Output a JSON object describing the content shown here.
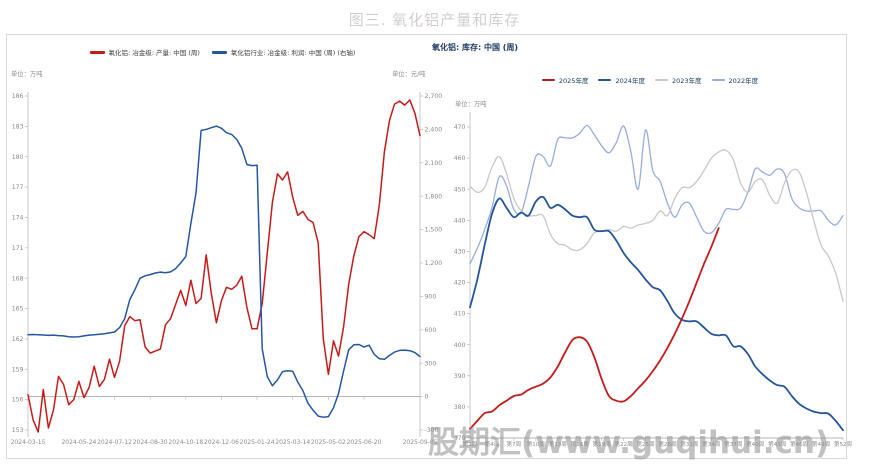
{
  "page": {
    "title": "图三. 氧化铝产量和库存",
    "watermark": "股期汇(www.guqihui.cn)"
  },
  "left_chart": {
    "unit_left": "单位：万吨",
    "unit_right": "单位：元/吨",
    "legend": [
      {
        "label": "氧化铝: 冶金级: 产量: 中国 (周)",
        "color": "#c41a1a"
      },
      {
        "label": "氧化铝行业: 冶金级: 利润: 中国 (周) (右轴)",
        "color": "#2456a4"
      }
    ]
  },
  "right_chart": {
    "title": "氧化铝: 库存: 中国 (周)",
    "unit": "单位：万吨",
    "legend": [
      {
        "label": "2025年度",
        "color": "#c41a1a"
      },
      {
        "label": "2024年度",
        "color": "#24549c"
      },
      {
        "label": "2023年度",
        "color": "#c8c8c8"
      },
      {
        "label": "2022年度",
        "color": "#95aedc"
      }
    ]
  },
  "chart_data": [
    {
      "id": "left",
      "type": "line",
      "ylabel_left": "万吨",
      "ylabel_right": "元/吨",
      "ylim_left": [
        153,
        186
      ],
      "yticks_left": [
        186,
        183,
        180,
        177,
        174,
        171,
        168,
        165,
        162,
        159,
        156,
        153
      ],
      "ylim_right": [
        -300,
        2700
      ],
      "yticks_right": [
        {
          "v": 2700,
          "label": "2,700"
        },
        {
          "v": 2400,
          "label": "2,400"
        },
        {
          "v": 2100,
          "label": "2,100"
        },
        {
          "v": 1800,
          "label": "1,800"
        },
        {
          "v": 1500,
          "label": "1,500"
        },
        {
          "v": 1200,
          "label": "1,200"
        },
        {
          "v": 900,
          "label": "900"
        },
        {
          "v": 600,
          "label": "600"
        },
        {
          "v": 300,
          "label": "300"
        },
        {
          "v": 0,
          "label": "0"
        },
        {
          "v": -300,
          "label": "-300"
        }
      ],
      "x_ticks": [
        {
          "pos": 0,
          "label": "2024-03-15"
        },
        {
          "pos": 10,
          "label": "2024-05-24"
        },
        {
          "pos": 17,
          "label": "2024-07-12"
        },
        {
          "pos": 24,
          "label": "2024-08-30"
        },
        {
          "pos": 31,
          "label": "2024-10-18"
        },
        {
          "pos": 38,
          "label": "2024-12-06"
        },
        {
          "pos": 45,
          "label": "2025-01-24"
        },
        {
          "pos": 52,
          "label": "2025-03-14"
        },
        {
          "pos": 59,
          "label": "2025-05-02"
        },
        {
          "pos": 66,
          "label": "2025-06-20"
        },
        {
          "pos": 77,
          "label": "2025-09-05"
        }
      ],
      "series": [
        {
          "name": "氧化铝: 冶金级: 产量: 中国 (周)",
          "axis": "left",
          "color": "#c41a1a",
          "width": 1.5,
          "values": [
            156.5,
            154,
            152.8,
            157,
            153.2,
            155,
            158.3,
            157.5,
            155.5,
            156,
            157.8,
            156.2,
            157.2,
            159.3,
            157.3,
            158,
            160,
            158.2,
            159.8,
            163.3,
            164.2,
            163.8,
            163.9,
            161.2,
            160.6,
            160.8,
            161,
            163.4,
            164,
            165.4,
            166.8,
            165.3,
            167.8,
            165.5,
            166,
            170.3,
            166.5,
            163.6,
            165.8,
            167.1,
            166.9,
            167.3,
            168.2,
            165.1,
            163,
            163,
            165.5,
            170.5,
            175.5,
            178.3,
            177.7,
            178.5,
            176,
            174.2,
            174.6,
            173.8,
            173.5,
            171.5,
            162,
            158.5,
            161.8,
            160.3,
            163.2,
            167.4,
            170.2,
            172.1,
            172.6,
            172.3,
            171.9,
            175.2,
            180.5,
            183.6,
            185.2,
            185.5,
            185.1,
            185.6,
            184.3,
            182.1
          ]
        },
        {
          "name": "氧化铝行业: 冶金级: 利润: 中国 (周) (右轴)",
          "axis": "right",
          "color": "#2456a4",
          "width": 1.5,
          "values": [
            555,
            558,
            556,
            553,
            550,
            552,
            548,
            545,
            538,
            535,
            537,
            545,
            552,
            556,
            560,
            565,
            572,
            580,
            620,
            700,
            871,
            960,
            1063,
            1085,
            1096,
            1110,
            1118,
            1112,
            1120,
            1150,
            1200,
            1258,
            1556,
            1829,
            2390,
            2400,
            2415,
            2430,
            2410,
            2370,
            2355,
            2310,
            2230,
            2085,
            2075,
            2078,
            430,
            180,
            98,
            150,
            225,
            232,
            228,
            130,
            54,
            -60,
            -123,
            -175,
            -185,
            -180,
            -100,
            27,
            230,
            420,
            465,
            468,
            445,
            462,
            380,
            340,
            335,
            370,
            400,
            415,
            418,
            412,
            395,
            360
          ]
        }
      ]
    },
    {
      "id": "right",
      "type": "line",
      "ylabel": "万吨",
      "ylim": [
        370,
        470
      ],
      "yticks": [
        470,
        460,
        450,
        440,
        430,
        420,
        410,
        400,
        390,
        380,
        370
      ],
      "weeks": 52,
      "x_ticks": [
        {
          "pos": 1,
          "label": "第1周"
        },
        {
          "pos": 4,
          "label": "第4周"
        },
        {
          "pos": 7,
          "label": "第7周"
        },
        {
          "pos": 10,
          "label": "第10周"
        },
        {
          "pos": 13,
          "label": "第13周"
        },
        {
          "pos": 16,
          "label": "第16周"
        },
        {
          "pos": 19,
          "label": "第19周"
        },
        {
          "pos": 22,
          "label": "第22周"
        },
        {
          "pos": 25,
          "label": "第25周"
        },
        {
          "pos": 28,
          "label": "第28周"
        },
        {
          "pos": 31,
          "label": "第31周"
        },
        {
          "pos": 34,
          "label": "第34周"
        },
        {
          "pos": 37,
          "label": "第37周"
        },
        {
          "pos": 40,
          "label": "第40周"
        },
        {
          "pos": 43,
          "label": "第43周"
        },
        {
          "pos": 46,
          "label": "第46周"
        },
        {
          "pos": 49,
          "label": "第49周"
        },
        {
          "pos": 52,
          "label": "第52周"
        }
      ],
      "series": [
        {
          "name": "2025年度",
          "color": "#c41a1a",
          "width": 1.8,
          "values": [
            373,
            375.5,
            378,
            378.5,
            380.5,
            382,
            383.5,
            384,
            385.5,
            386.5,
            387.5,
            389.5,
            393,
            397.5,
            401.5,
            402.4,
            401,
            396,
            389,
            383.5,
            382,
            381.8,
            383.5,
            386,
            388.5,
            391.5,
            395,
            399,
            403.5,
            408.5,
            414,
            420,
            426,
            431.5,
            437.5
          ]
        },
        {
          "name": "2024年度",
          "color": "#24549c",
          "width": 1.8,
          "values": [
            412,
            421,
            432,
            442,
            447,
            444,
            441,
            442.5,
            441.5,
            446,
            447.5,
            444,
            445,
            443.5,
            441.5,
            441,
            441,
            437,
            436.5,
            436.5,
            433.5,
            429.5,
            426.5,
            424,
            421,
            418.5,
            417.5,
            414,
            410,
            408,
            407.5,
            407.5,
            405.5,
            403.5,
            403,
            403,
            399.5,
            399.5,
            397,
            393,
            390.5,
            388.5,
            387,
            386.5,
            383.5,
            381,
            379.5,
            378.5,
            378,
            377.8,
            375.5,
            372.5
          ]
        },
        {
          "name": "2023年度",
          "color": "#c8c8c8",
          "width": 1.3,
          "values": [
            451,
            449,
            450.5,
            457,
            460.5,
            455,
            447,
            443,
            441.5,
            441.5,
            441.5,
            435.5,
            432.5,
            432,
            430.5,
            430.5,
            432.5,
            436,
            436.5,
            437,
            436.5,
            438,
            437.5,
            438.5,
            439,
            440,
            443,
            441.5,
            447,
            450.5,
            450.5,
            452.5,
            456,
            460,
            462,
            462.5,
            459.5,
            452,
            449,
            452.5,
            453,
            448,
            445.5,
            452,
            456,
            455.5,
            449,
            440,
            432,
            428.5,
            423,
            414
          ]
        },
        {
          "name": "2022年度",
          "color": "#95aedc",
          "width": 1.3,
          "values": [
            426,
            431,
            437,
            444,
            454,
            451,
            443.5,
            442.5,
            451,
            460.5,
            460.5,
            457.5,
            466,
            466.5,
            466.5,
            468,
            470.5,
            467.5,
            464,
            461.7,
            465,
            470.3,
            462,
            450,
            469,
            456,
            452.5,
            445.5,
            441,
            445,
            445.5,
            441,
            436.5,
            436,
            439,
            443.5,
            443.5,
            444,
            449,
            456.5,
            455.5,
            454.5,
            456.5,
            455,
            447,
            444,
            443,
            443,
            443,
            440,
            438.5,
            441.5
          ]
        }
      ]
    }
  ]
}
